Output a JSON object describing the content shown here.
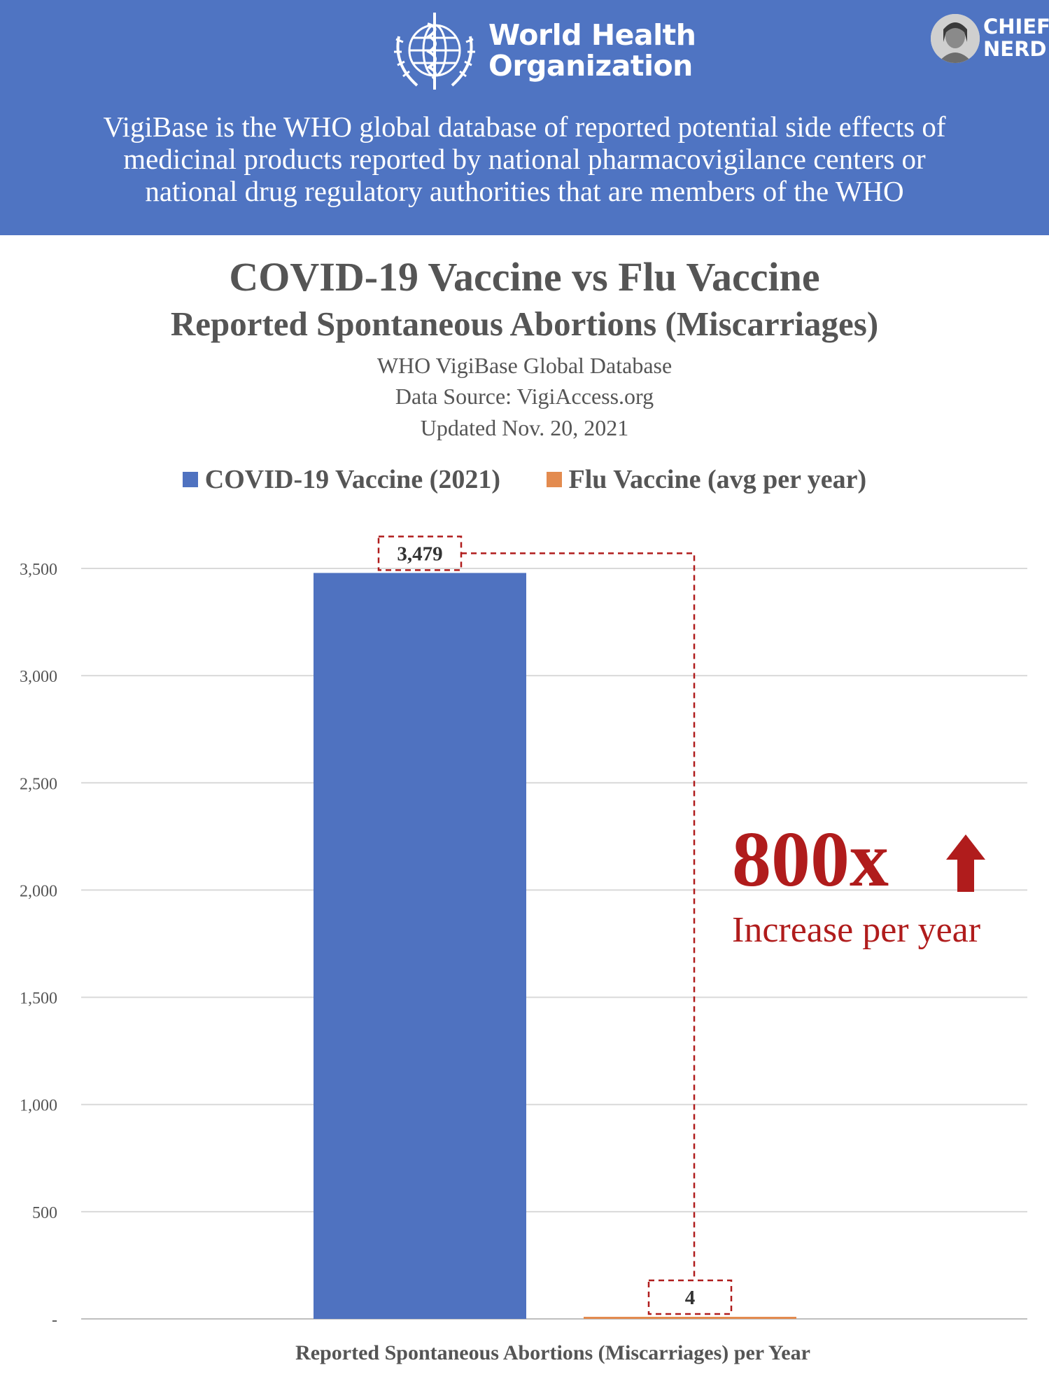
{
  "header": {
    "org_line1": "World Health",
    "org_line2": "Organization",
    "brand_line1": "CHIEF",
    "brand_line2": "NERD",
    "description": [
      "VigiBase is the WHO global database of reported potential side effects of",
      "medicinal products reported by national pharmacovigilance centers or",
      "national drug regulatory authorities that are members of the WHO"
    ]
  },
  "chart_data": {
    "type": "bar",
    "title": "COVID-19 Vaccine vs Flu Vaccine",
    "subtitle": "Reported Spontaneous Abortions (Miscarriages)",
    "info_lines": [
      "WHO VigiBase Global Database",
      "Data Source: VigiAccess.org",
      "Updated Nov. 20, 2021"
    ],
    "xlabel": "Reported Spontaneous Abortions (Miscarriages) per Year",
    "ylabel": "",
    "ylim": [
      0,
      3500
    ],
    "yticks": [
      {
        "value": 0,
        "label": "-"
      },
      {
        "value": 500,
        "label": "500"
      },
      {
        "value": 1000,
        "label": "1,000"
      },
      {
        "value": 1500,
        "label": "1,500"
      },
      {
        "value": 2000,
        "label": "2,000"
      },
      {
        "value": 2500,
        "label": "2,500"
      },
      {
        "value": 3000,
        "label": "3,000"
      },
      {
        "value": 3500,
        "label": "3,500"
      }
    ],
    "grid": true,
    "legend_position": "top",
    "series": [
      {
        "name": "COVID-19 Vaccine (2021)",
        "value": 3479,
        "data_label": "3,479",
        "color": "#4f72c0"
      },
      {
        "name": "Flu Vaccine (avg per year)",
        "value": 4,
        "data_label": "4",
        "color": "#e38b4f"
      }
    ],
    "annotation": {
      "multiplier": "800x",
      "text": "Increase per year",
      "color": "#b01c1c"
    }
  },
  "colors": {
    "header_bg": "#4f74c2",
    "text": "#555555",
    "grid": "#d9d9d9",
    "annotation_red": "#b01c1c"
  },
  "icons": {
    "org_logo": "who-emblem-icon",
    "brand_avatar": "avatar-icon",
    "arrow": "up-arrow-icon"
  }
}
